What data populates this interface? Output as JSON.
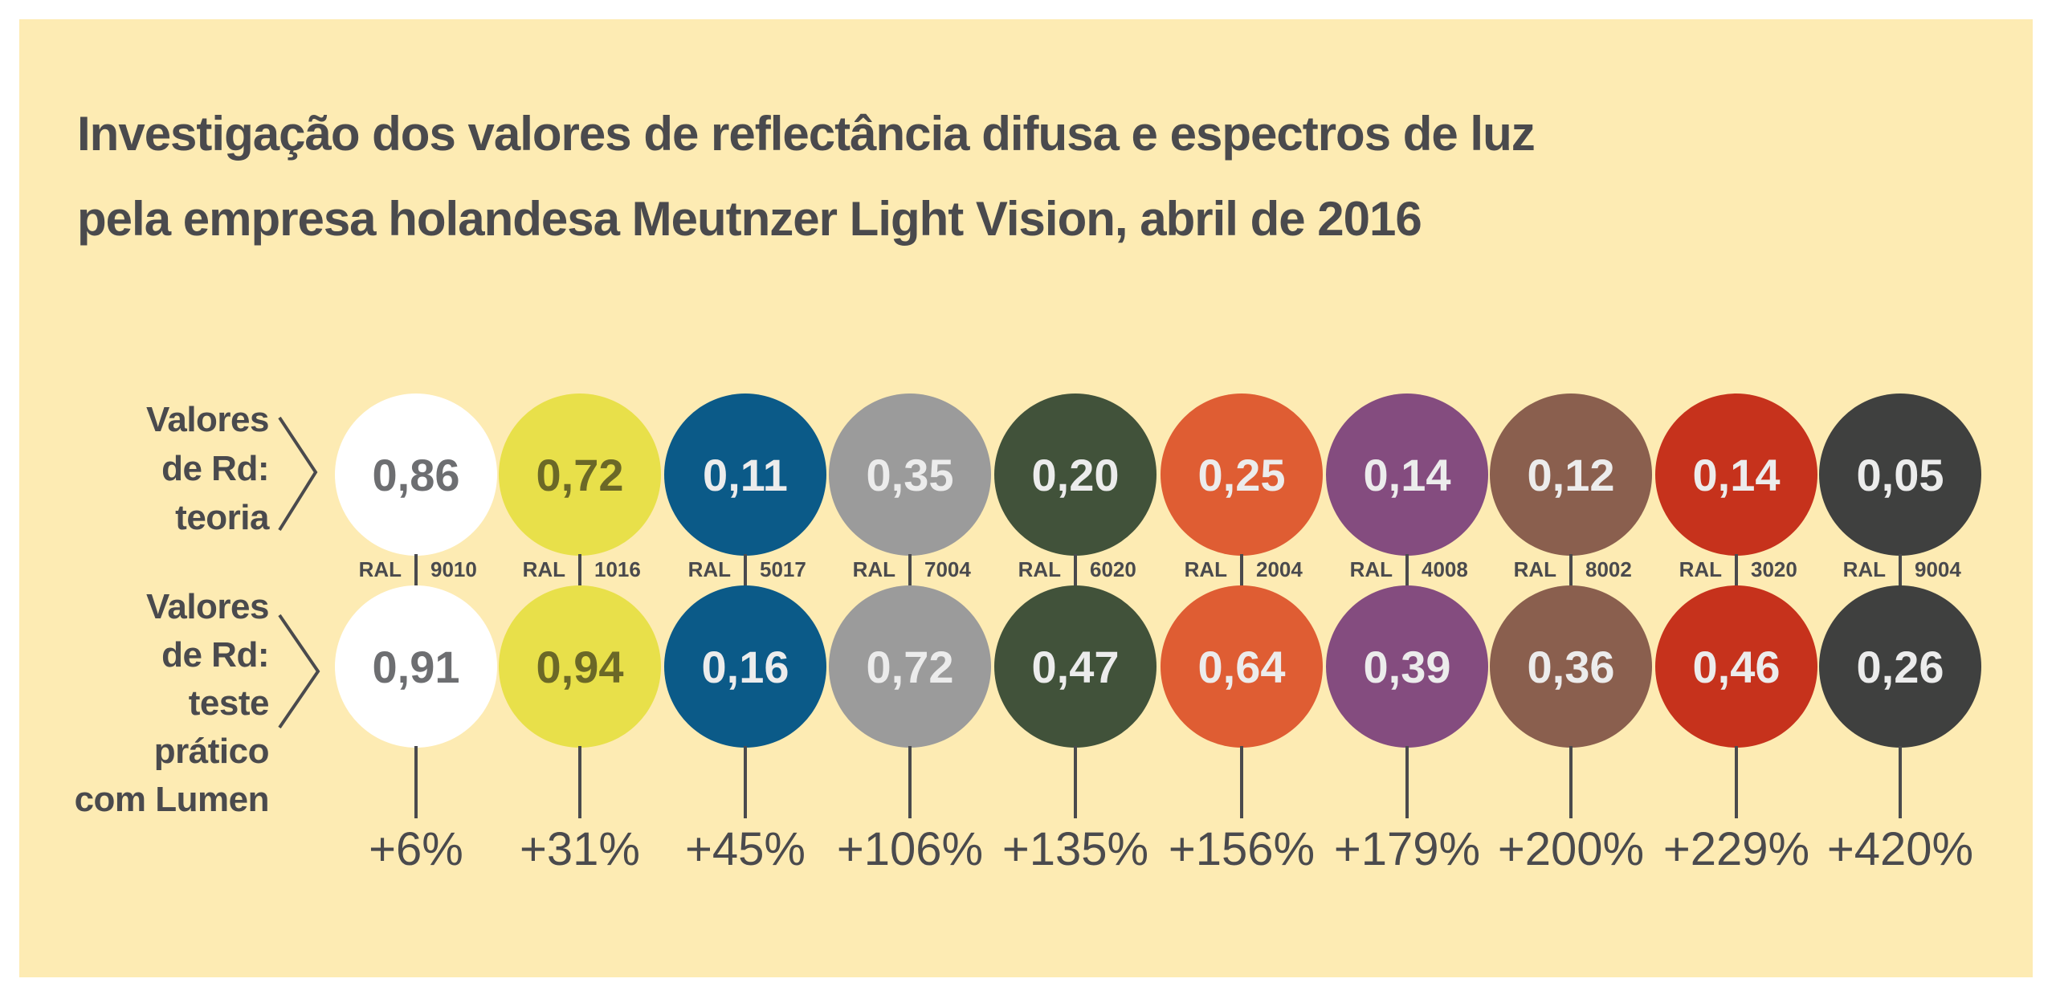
{
  "title": {
    "line1": "Investigação dos valores de reflectância difusa e espectros de luz",
    "line2": "pela empresa holandesa Meutnzer Light Vision, abril de 2016"
  },
  "row_labels": {
    "theory": [
      "Valores",
      "de Rd:",
      "teoria"
    ],
    "test": [
      "Valores",
      "de Rd:",
      "teste",
      "prático",
      "com Lumen"
    ]
  },
  "ral_prefix": "RAL",
  "columns": [
    {
      "ral": "9010",
      "theory": "0,86",
      "test": "0,91",
      "increase": "+6%",
      "color": "#ffffff",
      "text_color": "#6d6e71"
    },
    {
      "ral": "1016",
      "theory": "0,72",
      "test": "0,94",
      "increase": "+31%",
      "color": "#e8e04a",
      "text_color": "#6b6827"
    },
    {
      "ral": "5017",
      "theory": "0,11",
      "test": "0,16",
      "increase": "+45%",
      "color": "#0b5a88",
      "text_color": "#ececec"
    },
    {
      "ral": "7004",
      "theory": "0,35",
      "test": "0,72",
      "increase": "+106%",
      "color": "#9b9b9b",
      "text_color": "#ececec"
    },
    {
      "ral": "6020",
      "theory": "0,20",
      "test": "0,47",
      "increase": "+135%",
      "color": "#41523a",
      "text_color": "#ececec"
    },
    {
      "ral": "2004",
      "theory": "0,25",
      "test": "0,64",
      "increase": "+156%",
      "color": "#df5d33",
      "text_color": "#ececec"
    },
    {
      "ral": "4008",
      "theory": "0,14",
      "test": "0,39",
      "increase": "+179%",
      "color": "#844c7f",
      "text_color": "#ececec"
    },
    {
      "ral": "8002",
      "theory": "0,12",
      "test": "0,36",
      "increase": "+200%",
      "color": "#8a5f4e",
      "text_color": "#ececec"
    },
    {
      "ral": "3020",
      "theory": "0,14",
      "test": "0,46",
      "increase": "+229%",
      "color": "#c6321c",
      "text_color": "#ececec"
    },
    {
      "ral": "9004",
      "theory": "0,05",
      "test": "0,26",
      "increase": "+420%",
      "color": "#3f403f",
      "text_color": "#ececec"
    }
  ],
  "colors": {
    "background": "#fdebb3",
    "text": "#4a4a4d"
  }
}
